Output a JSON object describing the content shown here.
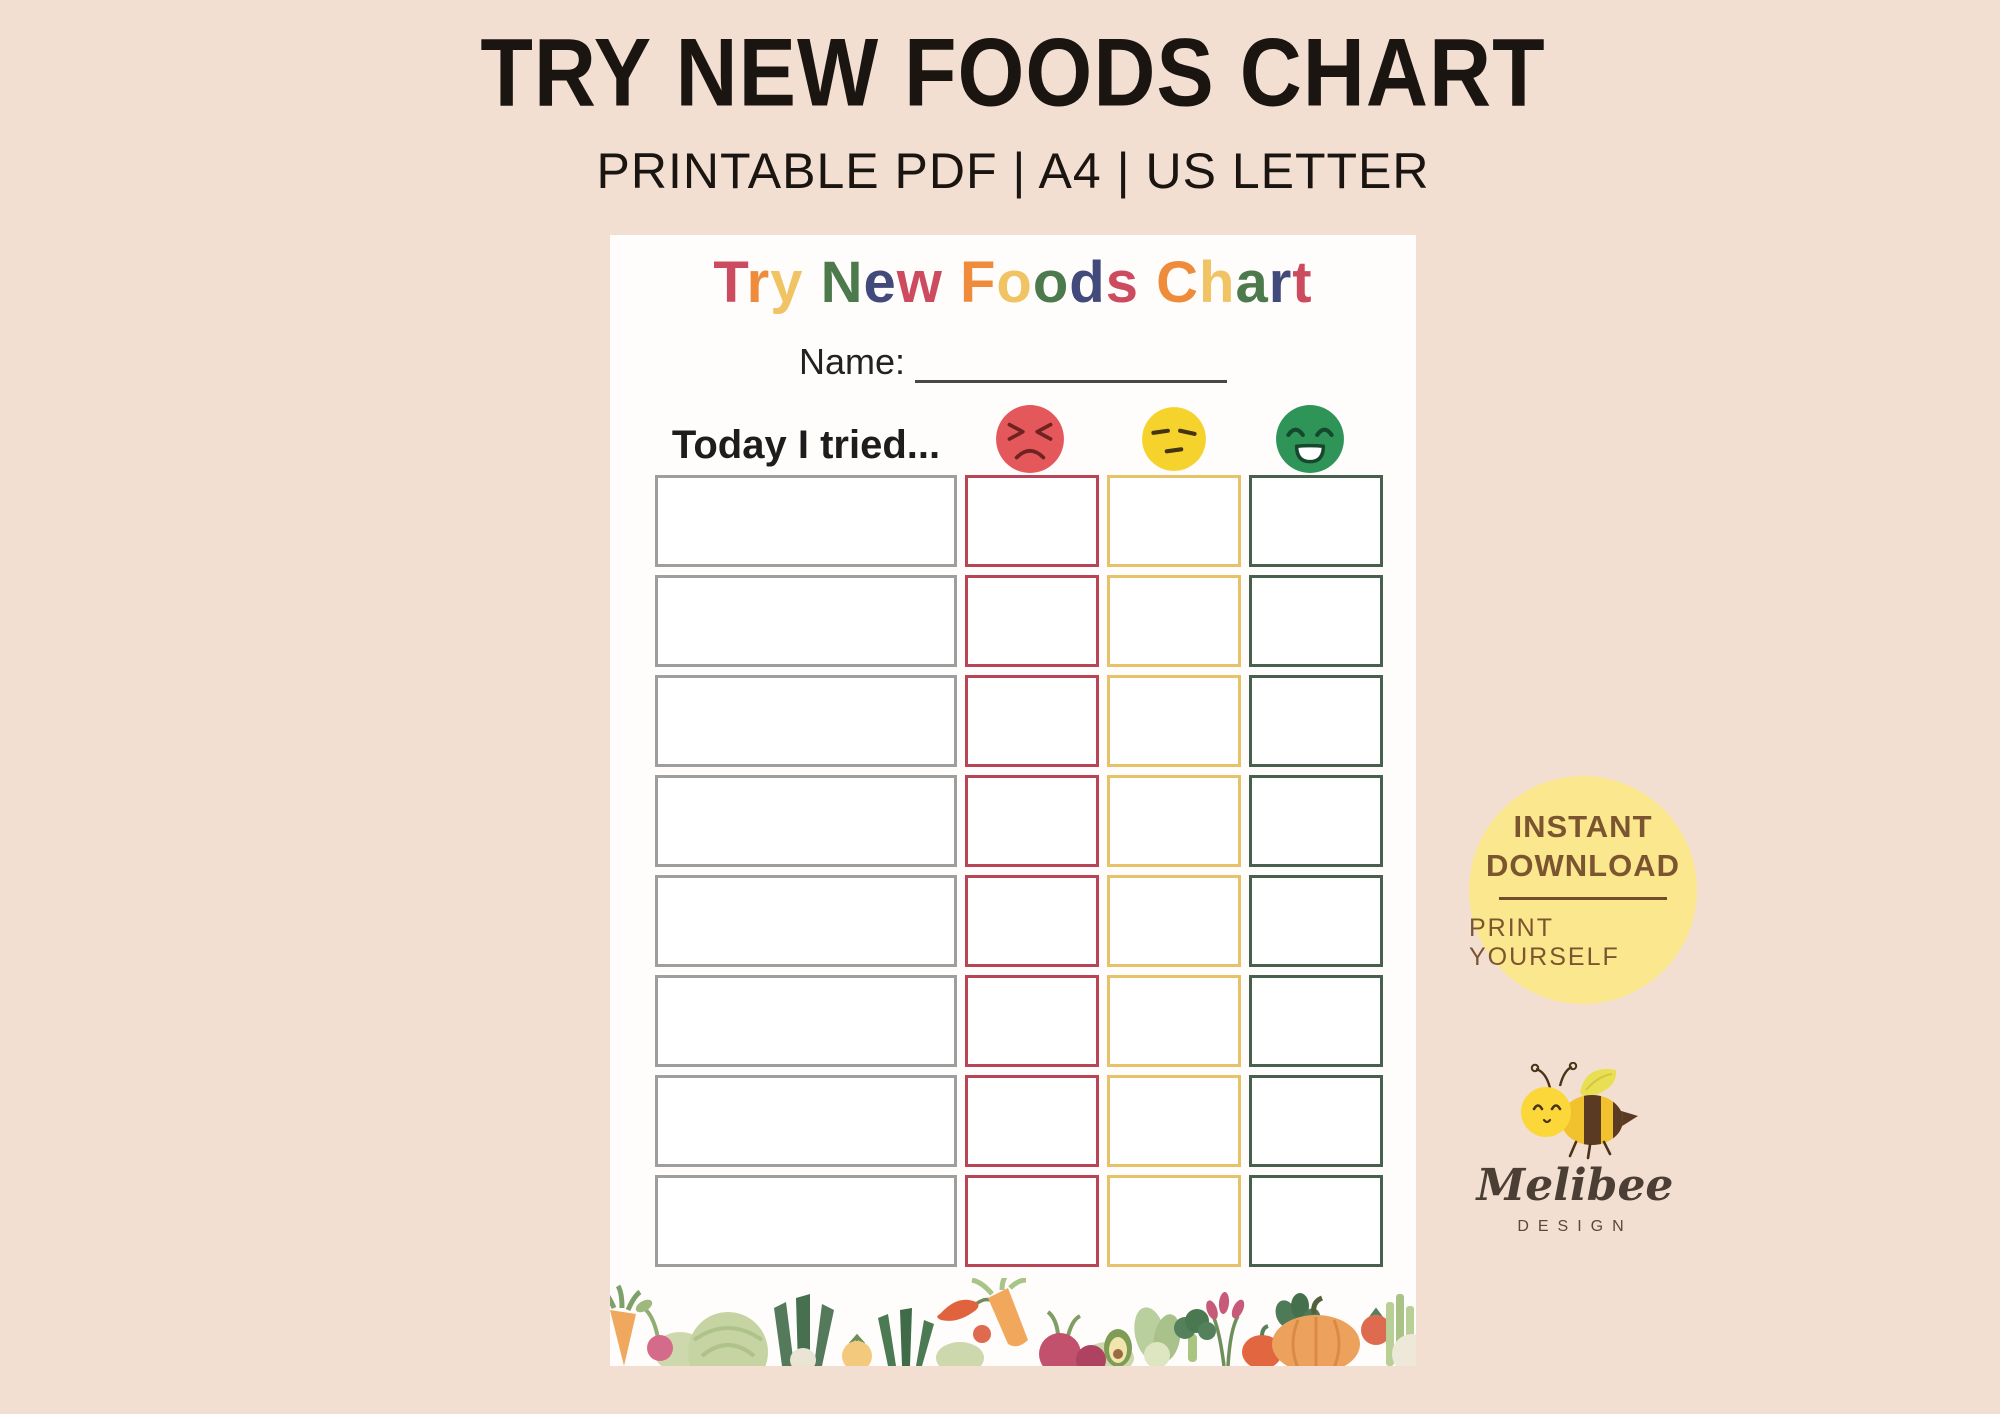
{
  "header": {
    "title": "TRY NEW FOODS CHART",
    "subtitle": "PRINTABLE PDF | A4 | US LETTER"
  },
  "document": {
    "heading": {
      "text": "Try New Foods Chart",
      "palette": [
        "#cc4b5e",
        "#ee8c3c",
        "#f0c364",
        "#4d7a4c",
        "#414a7b"
      ]
    },
    "name_label": "Name:",
    "prompt": "Today I tried...",
    "rating_faces": [
      {
        "icon": "angry-face-icon",
        "color": "#e4585c"
      },
      {
        "icon": "neutral-face-icon",
        "color": "#f6d22c"
      },
      {
        "icon": "happy-face-icon",
        "color": "#2f9457"
      }
    ],
    "grid": {
      "rows": 8,
      "columns": [
        {
          "key": "food",
          "border": "#9e9e9e"
        },
        {
          "key": "disliked",
          "border": "#b94456"
        },
        {
          "key": "neutral",
          "border": "#e8c268"
        },
        {
          "key": "liked",
          "border": "#48614e"
        }
      ]
    }
  },
  "badge": {
    "line1": "INSTANT",
    "line2": "DOWNLOAD",
    "line3": "PRINT YOURSELF",
    "bg_color": "#fbe78d",
    "text_color": "#7a5530"
  },
  "logo": {
    "brand": "Melibee",
    "sub": "DESIGN"
  },
  "colors": {
    "background": "#f2dfd2",
    "page": "#fefdfc",
    "title_text": "#1a1511",
    "rating_red": "#e4585c",
    "rating_yellow": "#f6d22c",
    "rating_green": "#2f9457"
  }
}
